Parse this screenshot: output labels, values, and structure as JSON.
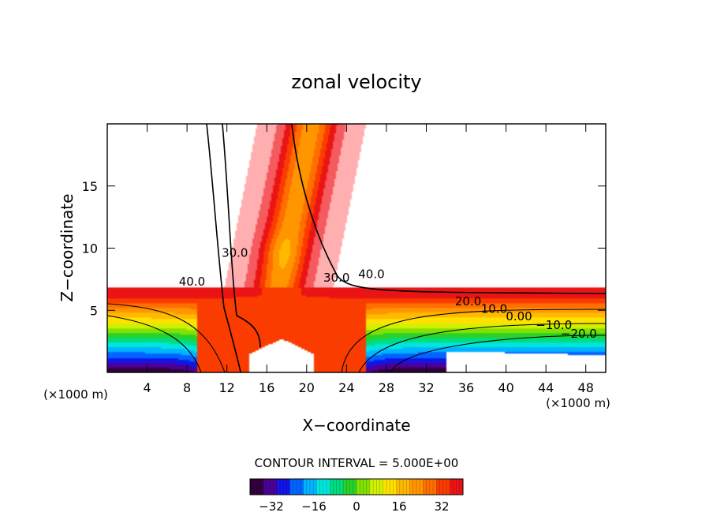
{
  "chart_data": {
    "type": "heatmap",
    "title": "zonal velocity",
    "xlabel": "X−coordinate",
    "ylabel": "Z−coordinate",
    "x_unit_left": "(×1000 m)",
    "x_unit_right": "(×1000 m)",
    "xlim": [
      0,
      50
    ],
    "ylim": [
      0,
      20
    ],
    "x_ticks": [
      4,
      8,
      12,
      16,
      20,
      24,
      28,
      32,
      36,
      40,
      44,
      48
    ],
    "y_ticks": [
      5,
      10,
      15
    ],
    "contour_interval_text": "CONTOUR INTERVAL = 5.000E+00",
    "colorbar": {
      "min": -40,
      "max": 40,
      "ticks": [
        -32,
        -16,
        0,
        16,
        32
      ],
      "tick_labels": [
        "−32",
        "−16",
        "0",
        "16",
        "32"
      ]
    },
    "contour_labels": [
      {
        "text": "40.0",
        "x": 8.5,
        "z": 7.0
      },
      {
        "text": "30.0",
        "x": 12.8,
        "z": 9.3
      },
      {
        "text": "30.0",
        "x": 23.0,
        "z": 7.3
      },
      {
        "text": "40.0",
        "x": 26.5,
        "z": 7.6
      },
      {
        "text": "20.0",
        "x": 36.2,
        "z": 5.4
      },
      {
        "text": "10.0",
        "x": 38.8,
        "z": 4.8
      },
      {
        "text": "0.00",
        "x": 41.3,
        "z": 4.2
      },
      {
        "text": "−10.0",
        "x": 44.8,
        "z": 3.5
      },
      {
        "text": "−20.0",
        "x": 47.3,
        "z": 2.8
      }
    ],
    "field_description_points": [
      {
        "x": 17.3,
        "z": 9.7,
        "u": 25
      },
      {
        "x": 17.0,
        "z": 17.0,
        "u": 29
      },
      {
        "x": 13.0,
        "z": 10.0,
        "u": 36
      },
      {
        "x": 9.0,
        "z": 6.3,
        "u": 42
      },
      {
        "x": 30.0,
        "z": 6.3,
        "u": 42
      },
      {
        "x": 5.0,
        "z": 3.5,
        "u": 5
      },
      {
        "x": 2.0,
        "z": 0.5,
        "u": -38
      },
      {
        "x": 42.0,
        "z": 0.8,
        "u": -35
      },
      {
        "x": 36.0,
        "z": 3.5,
        "u": 10
      },
      {
        "x": 22.5,
        "z": 2.5,
        "u": 25
      }
    ]
  }
}
